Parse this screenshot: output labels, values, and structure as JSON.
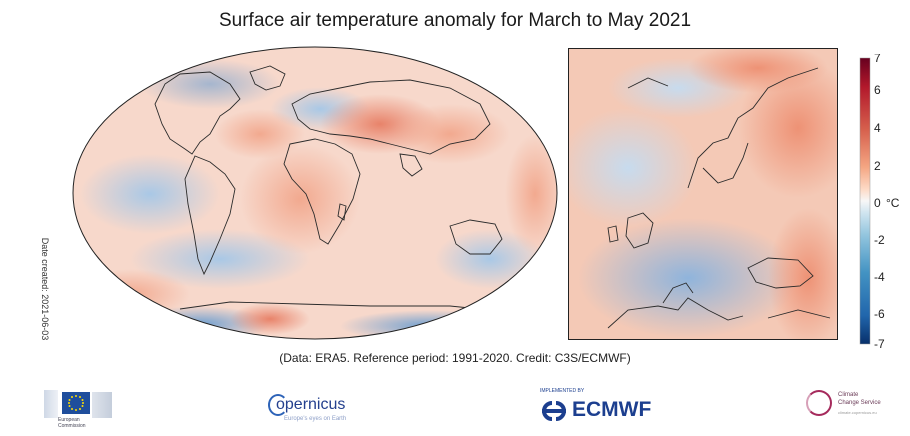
{
  "figure": {
    "title": "Surface air temperature anomaly for March to May 2021",
    "date_created": "Date created: 2021-06-03",
    "credit": "(Data: ERA5.  Reference period: 1991-2020.  Credit: C3S/ECMWF)"
  },
  "colorbar": {
    "unit": "°C",
    "ticks": [
      "7",
      "6",
      "4",
      "2",
      "0",
      "-2",
      "-4",
      "-6",
      "-7"
    ],
    "colors": [
      "#08306b",
      "#2166ac",
      "#4393c3",
      "#92c5de",
      "#d1e5f0",
      "#f7f7f7",
      "#fddbc7",
      "#f4a582",
      "#d6604d",
      "#b2182b",
      "#67001f"
    ]
  },
  "maps": {
    "world": {
      "icon": "world-map-robinson-projection"
    },
    "europe": {
      "icon": "europe-map-inset"
    }
  },
  "logos": {
    "eu": {
      "icon": "eu-flag-icon",
      "text": "European Commission"
    },
    "copernicus": {
      "name": "opernicus",
      "sub": "Europe's eyes on Earth"
    },
    "ecmwf": {
      "top": "IMPLEMENTED BY",
      "name": "ECMWF"
    },
    "c3s": {
      "line1": "Climate",
      "line2": "Change Service",
      "line3": "climate.copernicus.eu"
    }
  }
}
